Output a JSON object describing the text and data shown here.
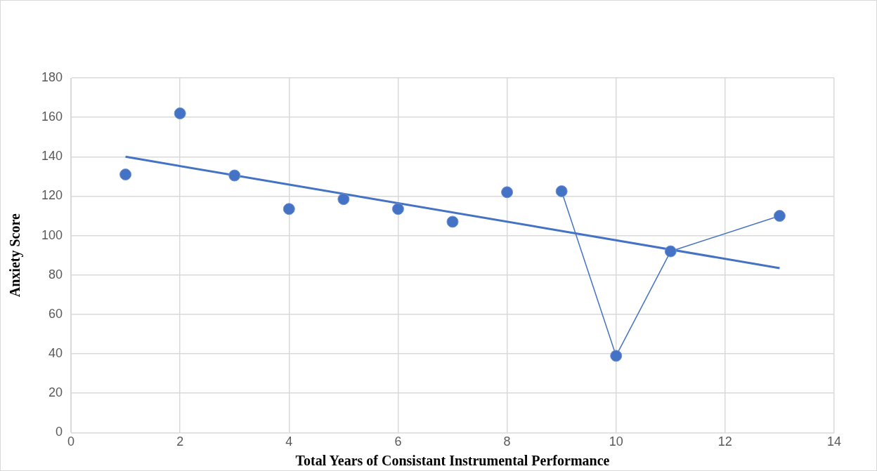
{
  "chart_data": {
    "type": "scatter",
    "xlabel": "Total Years of Consistant Instrumental Performance",
    "ylabel": "Anxiety Score",
    "xlim": [
      0,
      14
    ],
    "xticks": [
      0,
      2,
      4,
      6,
      8,
      10,
      12,
      14
    ],
    "ylim": [
      0,
      180
    ],
    "yticks": [
      0,
      20,
      40,
      60,
      80,
      100,
      120,
      140,
      160,
      180
    ],
    "grid": true,
    "series": [
      {
        "type": "scatter",
        "color": "#4472c4",
        "marker": "circle",
        "x": [
          1,
          2,
          3,
          4,
          5,
          6,
          7,
          8
        ],
        "values": [
          131,
          162,
          130.5,
          113.5,
          118.5,
          113.5,
          107,
          122
        ]
      },
      {
        "type": "line",
        "color": "#4472c4",
        "marker": "circle",
        "line_style": "solid",
        "x": [
          9,
          10,
          11,
          13
        ],
        "values": [
          122.5,
          39,
          92,
          110
        ]
      },
      {
        "type": "line",
        "color": "#4472c4",
        "marker": "none",
        "line_style": "solid",
        "x": [
          1,
          13
        ],
        "values": [
          140,
          83.5
        ]
      }
    ]
  }
}
